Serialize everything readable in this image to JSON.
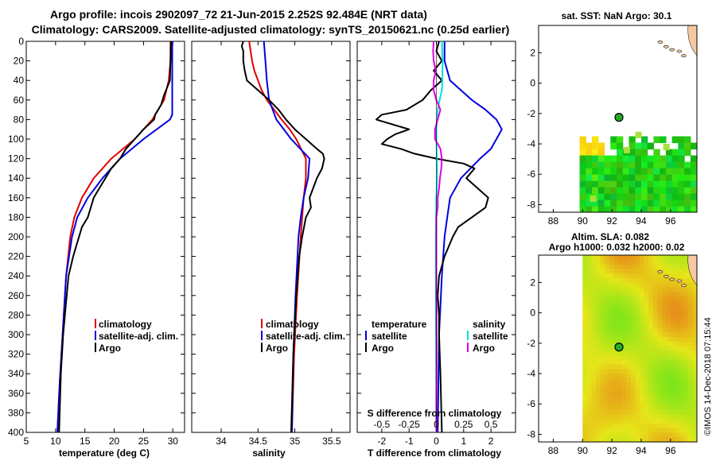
{
  "title_line1": "Argo profile: incois 2902097_72 21-Jun-2015 2.252S 92.484E (NRT data)",
  "title_line2": "Climatology: CARS2009. Satellite-adjusted climatology: synTS_20150621.nc (0.25d earlier)",
  "credit": "©IMOS 14-Dec-2018 07:15:44",
  "colors": {
    "clim": "#e00000",
    "sat": "#0000e0",
    "argo": "#000000",
    "sat_s": "#00e0e0",
    "argo_s": "#e000e0"
  },
  "chart_data": [
    {
      "type": "line",
      "name": "temperature",
      "xlabel": "temperature (deg C)",
      "xlim": [
        5,
        32
      ],
      "ylim": [
        0,
        400
      ],
      "xticks": [
        "5",
        "10",
        "15",
        "20",
        "25",
        "30"
      ],
      "xtick_values": [
        5,
        10,
        15,
        20,
        25,
        30
      ],
      "yticks": [
        "0",
        "20",
        "40",
        "60",
        "80",
        "100",
        "120",
        "140",
        "160",
        "180",
        "200",
        "220",
        "240",
        "260",
        "280",
        "300",
        "320",
        "340",
        "360",
        "380",
        "400"
      ],
      "ytick_values": [
        0,
        20,
        40,
        60,
        80,
        100,
        120,
        140,
        160,
        180,
        200,
        220,
        240,
        260,
        280,
        300,
        320,
        340,
        360,
        380,
        400
      ],
      "legend": [
        "climatology",
        "satellite-adj. clim.",
        "Argo"
      ],
      "series": [
        {
          "name": "climatology",
          "color": "#e00000",
          "depth": [
            0,
            20,
            40,
            60,
            80,
            100,
            120,
            140,
            160,
            180,
            200,
            240,
            300,
            350,
            400
          ],
          "values": [
            29.6,
            29.6,
            29.3,
            28.5,
            26.5,
            23.5,
            19.5,
            16.5,
            14.5,
            13.2,
            12.5,
            11.8,
            11.2,
            10.7,
            10.3
          ]
        },
        {
          "name": "satellite-adj. clim.",
          "color": "#0000e0",
          "depth": [
            0,
            20,
            40,
            60,
            70,
            75,
            80,
            100,
            120,
            140,
            160,
            180,
            200,
            240,
            300,
            350,
            400
          ],
          "values": [
            29.9,
            29.9,
            29.9,
            29.9,
            29.9,
            29.9,
            29.5,
            25,
            21,
            18,
            15.5,
            13.7,
            12.8,
            11.8,
            11.2,
            10.7,
            10.3
          ]
        },
        {
          "name": "Argo",
          "color": "#000000",
          "depth": [
            0,
            20,
            40,
            55,
            65,
            75,
            80,
            90,
            100,
            110,
            120,
            130,
            140,
            150,
            160,
            170,
            180,
            190,
            200,
            210,
            220,
            240,
            280,
            300,
            340,
            380,
            400
          ],
          "values": [
            29.7,
            29.6,
            29.5,
            28.5,
            28,
            27,
            26.8,
            25,
            23.5,
            22,
            21,
            19.5,
            18.5,
            17.5,
            16.5,
            16,
            15.5,
            14.5,
            14,
            13.5,
            13,
            12.2,
            11.6,
            11.3,
            10.9,
            10.7,
            10.6
          ]
        }
      ]
    },
    {
      "type": "line",
      "name": "salinity",
      "xlabel": "salinity",
      "xlim": [
        33.6,
        35.75
      ],
      "ylim": [
        0,
        400
      ],
      "xticks": [
        "34",
        "34.5",
        "35",
        "35.5"
      ],
      "xtick_values": [
        34,
        34.5,
        35,
        35.5
      ],
      "legend": [
        "climatology",
        "satellite-adj. clim.",
        "Argo"
      ],
      "series": [
        {
          "name": "climatology",
          "color": "#e00000",
          "depth": [
            0,
            10,
            20,
            30,
            40,
            50,
            60,
            70,
            80,
            90,
            100,
            120,
            140,
            160,
            200,
            260,
            320,
            400
          ],
          "values": [
            34.38,
            34.4,
            34.42,
            34.45,
            34.5,
            34.55,
            34.62,
            34.72,
            34.82,
            34.93,
            35.02,
            35.15,
            35.15,
            35.12,
            35.08,
            35.03,
            34.99,
            34.96
          ]
        },
        {
          "name": "satellite-adj. clim.",
          "color": "#0000e0",
          "depth": [
            0,
            20,
            40,
            60,
            80,
            100,
            120,
            140,
            160,
            180,
            200,
            260,
            320,
            400
          ],
          "values": [
            34.58,
            34.6,
            34.62,
            34.65,
            34.75,
            34.95,
            35.2,
            35.18,
            35.12,
            35.08,
            35.05,
            35.01,
            34.98,
            34.96
          ]
        },
        {
          "name": "Argo",
          "color": "#000000",
          "depth": [
            0,
            5,
            10,
            20,
            30,
            40,
            50,
            60,
            70,
            80,
            90,
            100,
            110,
            115,
            120,
            130,
            140,
            150,
            160,
            170,
            180,
            200,
            220,
            260,
            320,
            400
          ],
          "values": [
            34.3,
            34.28,
            34.3,
            34.3,
            34.32,
            34.35,
            34.5,
            34.65,
            34.78,
            34.88,
            35.0,
            35.15,
            35.3,
            35.38,
            35.4,
            35.37,
            35.3,
            35.25,
            35.2,
            35.22,
            35.15,
            35.1,
            35.06,
            35.02,
            34.98,
            34.95
          ]
        }
      ]
    },
    {
      "type": "line",
      "name": "difference",
      "xlabel": "T difference from climatology",
      "top_label": "S difference from climatology",
      "xlim": [
        -2.9,
        2.9
      ],
      "ylim": [
        0,
        400
      ],
      "xticks": [
        "-2",
        "-1",
        "0",
        "1",
        "2"
      ],
      "xtick_values": [
        -2,
        -1,
        0,
        1,
        2
      ],
      "s_xticks": [
        "-0.5",
        "-0.25",
        "0",
        "0.25",
        "0.5"
      ],
      "s_xtick_values": [
        -0.5,
        -0.25,
        0,
        0.25,
        0.5
      ],
      "legend_temperature": "temperature",
      "legend_salinity": "salinity",
      "legend_t": [
        "satellite",
        "Argo"
      ],
      "legend_s": [
        "satellite",
        "Argo"
      ],
      "series": [
        {
          "name": "T satellite",
          "color": "#0000e0",
          "depth": [
            0,
            20,
            40,
            60,
            70,
            80,
            90,
            100,
            110,
            120,
            140,
            160,
            180,
            200,
            240,
            300,
            400
          ],
          "values": [
            0.3,
            0.3,
            0.5,
            1.3,
            1.8,
            2.2,
            2.4,
            2.2,
            2.0,
            1.6,
            0.9,
            0.5,
            0.4,
            0.3,
            0.2,
            0.1,
            0.05
          ]
        },
        {
          "name": "T Argo",
          "color": "#000000",
          "depth": [
            0,
            10,
            20,
            30,
            40,
            50,
            60,
            70,
            75,
            80,
            90,
            95,
            100,
            105,
            110,
            115,
            120,
            125,
            130,
            140,
            150,
            160,
            170,
            180,
            190,
            200,
            220,
            240,
            260,
            280,
            300,
            340,
            400
          ],
          "values": [
            0.1,
            0.0,
            0.2,
            -0.1,
            0.2,
            -0.2,
            -0.5,
            -1.1,
            -2.0,
            -2.2,
            -1.0,
            -1.5,
            -1.8,
            -2.0,
            -1.3,
            -0.8,
            0.0,
            1.0,
            1.4,
            1.1,
            1.5,
            1.9,
            1.8,
            1.3,
            0.8,
            0.6,
            0.3,
            0.1,
            0.05,
            0.1,
            0.1,
            0.15,
            0.2
          ]
        },
        {
          "name": "S satellite",
          "color": "#00e0e0",
          "depth": [
            0,
            20,
            40,
            50,
            60,
            70,
            80,
            90,
            100,
            120,
            140,
            160,
            200,
            260,
            320,
            400
          ],
          "values": [
            0.2,
            0.23,
            0.22,
            0.2,
            0.12,
            0.05,
            0.02,
            0.0,
            0.0,
            0.02,
            0.03,
            0.0,
            -0.02,
            -0.02,
            -0.01,
            0.0
          ]
        },
        {
          "name": "S Argo",
          "color": "#e000e0",
          "depth": [
            0,
            10,
            20,
            30,
            40,
            50,
            60,
            70,
            80,
            90,
            100,
            110,
            120,
            130,
            140,
            150,
            160,
            170,
            180,
            200,
            240,
            300,
            400
          ],
          "values": [
            -0.1,
            -0.12,
            -0.1,
            -0.02,
            -0.1,
            -0.1,
            0.0,
            0.15,
            0.05,
            -0.05,
            -0.05,
            0.15,
            0.2,
            0.18,
            0.13,
            0.1,
            0.05,
            0.05,
            0.0,
            0.0,
            0.0,
            0.01,
            0.0
          ]
        }
      ]
    },
    {
      "type": "heatmap",
      "name": "sst-map",
      "title": "sat. SST: NaN Argo: 30.1",
      "xlim": [
        87,
        97.8
      ],
      "ylim": [
        -8.5,
        3.8
      ],
      "xticks": [
        "88",
        "90",
        "92",
        "94",
        "96"
      ],
      "xtick_values": [
        88,
        90,
        92,
        94,
        96
      ],
      "yticks": [
        "2",
        "0",
        "-2",
        "-4",
        "-6",
        "-8"
      ],
      "ytick_values": [
        2,
        0,
        -2,
        -4,
        -6,
        -8
      ],
      "argo_position": {
        "lon": 92.484,
        "lat": -2.252
      }
    },
    {
      "type": "heatmap",
      "name": "sla-map",
      "title_line1": "Altim. SLA: 0.082",
      "title_line2": "Argo h1000: 0.032 h2000: 0.02",
      "xlim": [
        87,
        97.8
      ],
      "ylim": [
        -8.5,
        3.8
      ],
      "xticks": [
        "88",
        "90",
        "92",
        "94",
        "96"
      ],
      "xtick_values": [
        88,
        90,
        92,
        94,
        96
      ],
      "yticks": [
        "2",
        "0",
        "-2",
        "-4",
        "-6",
        "-8"
      ],
      "ytick_values": [
        2,
        0,
        -2,
        -4,
        -6,
        -8
      ],
      "argo_position": {
        "lon": 92.484,
        "lat": -2.252
      }
    }
  ]
}
